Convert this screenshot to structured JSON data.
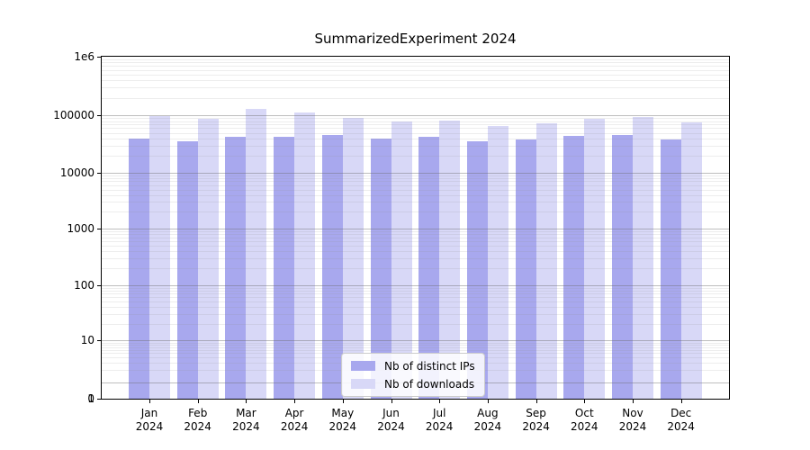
{
  "title": "SummarizedExperiment 2024",
  "colors": {
    "bar_ips": "#a8a8ee",
    "bar_downloads": "#d8d8f7",
    "axis": "#000000",
    "grid_major": "rgba(110,110,110,0.45)",
    "grid_minor": "rgba(140,140,140,0.16)",
    "legend_border": "#cccccc"
  },
  "chart_data": {
    "type": "bar",
    "title": "SummarizedExperiment 2024",
    "categories": [
      "Jan 2024",
      "Feb 2024",
      "Mar 2024",
      "Apr 2024",
      "May 2024",
      "Jun 2024",
      "Jul 2024",
      "Aug 2024",
      "Sep 2024",
      "Oct 2024",
      "Nov 2024",
      "Dec 2024"
    ],
    "series": [
      {
        "name": "Nb of distinct IPs",
        "color_key": "bar_ips",
        "values": [
          39500,
          36000,
          42000,
          42000,
          46500,
          39500,
          43000,
          36000,
          38000,
          44000,
          46500,
          38500
        ]
      },
      {
        "name": "Nb of downloads",
        "color_key": "bar_downloads",
        "values": [
          99000,
          86500,
          132000,
          111000,
          92000,
          79000,
          81500,
          66500,
          73000,
          88500,
          94000,
          75000
        ]
      }
    ],
    "xlabel": "",
    "ylabel": "",
    "yscale": "symlog",
    "ylim": [
      0,
      1000000
    ],
    "yticks": [
      1000000,
      100000,
      10000,
      1000,
      100,
      10,
      1,
      0
    ],
    "ytick_labels": [
      "1e6",
      "100000",
      "10000",
      "1000",
      "100",
      "10",
      "1",
      "0"
    ],
    "grid": true,
    "legend_position": "lower center"
  }
}
